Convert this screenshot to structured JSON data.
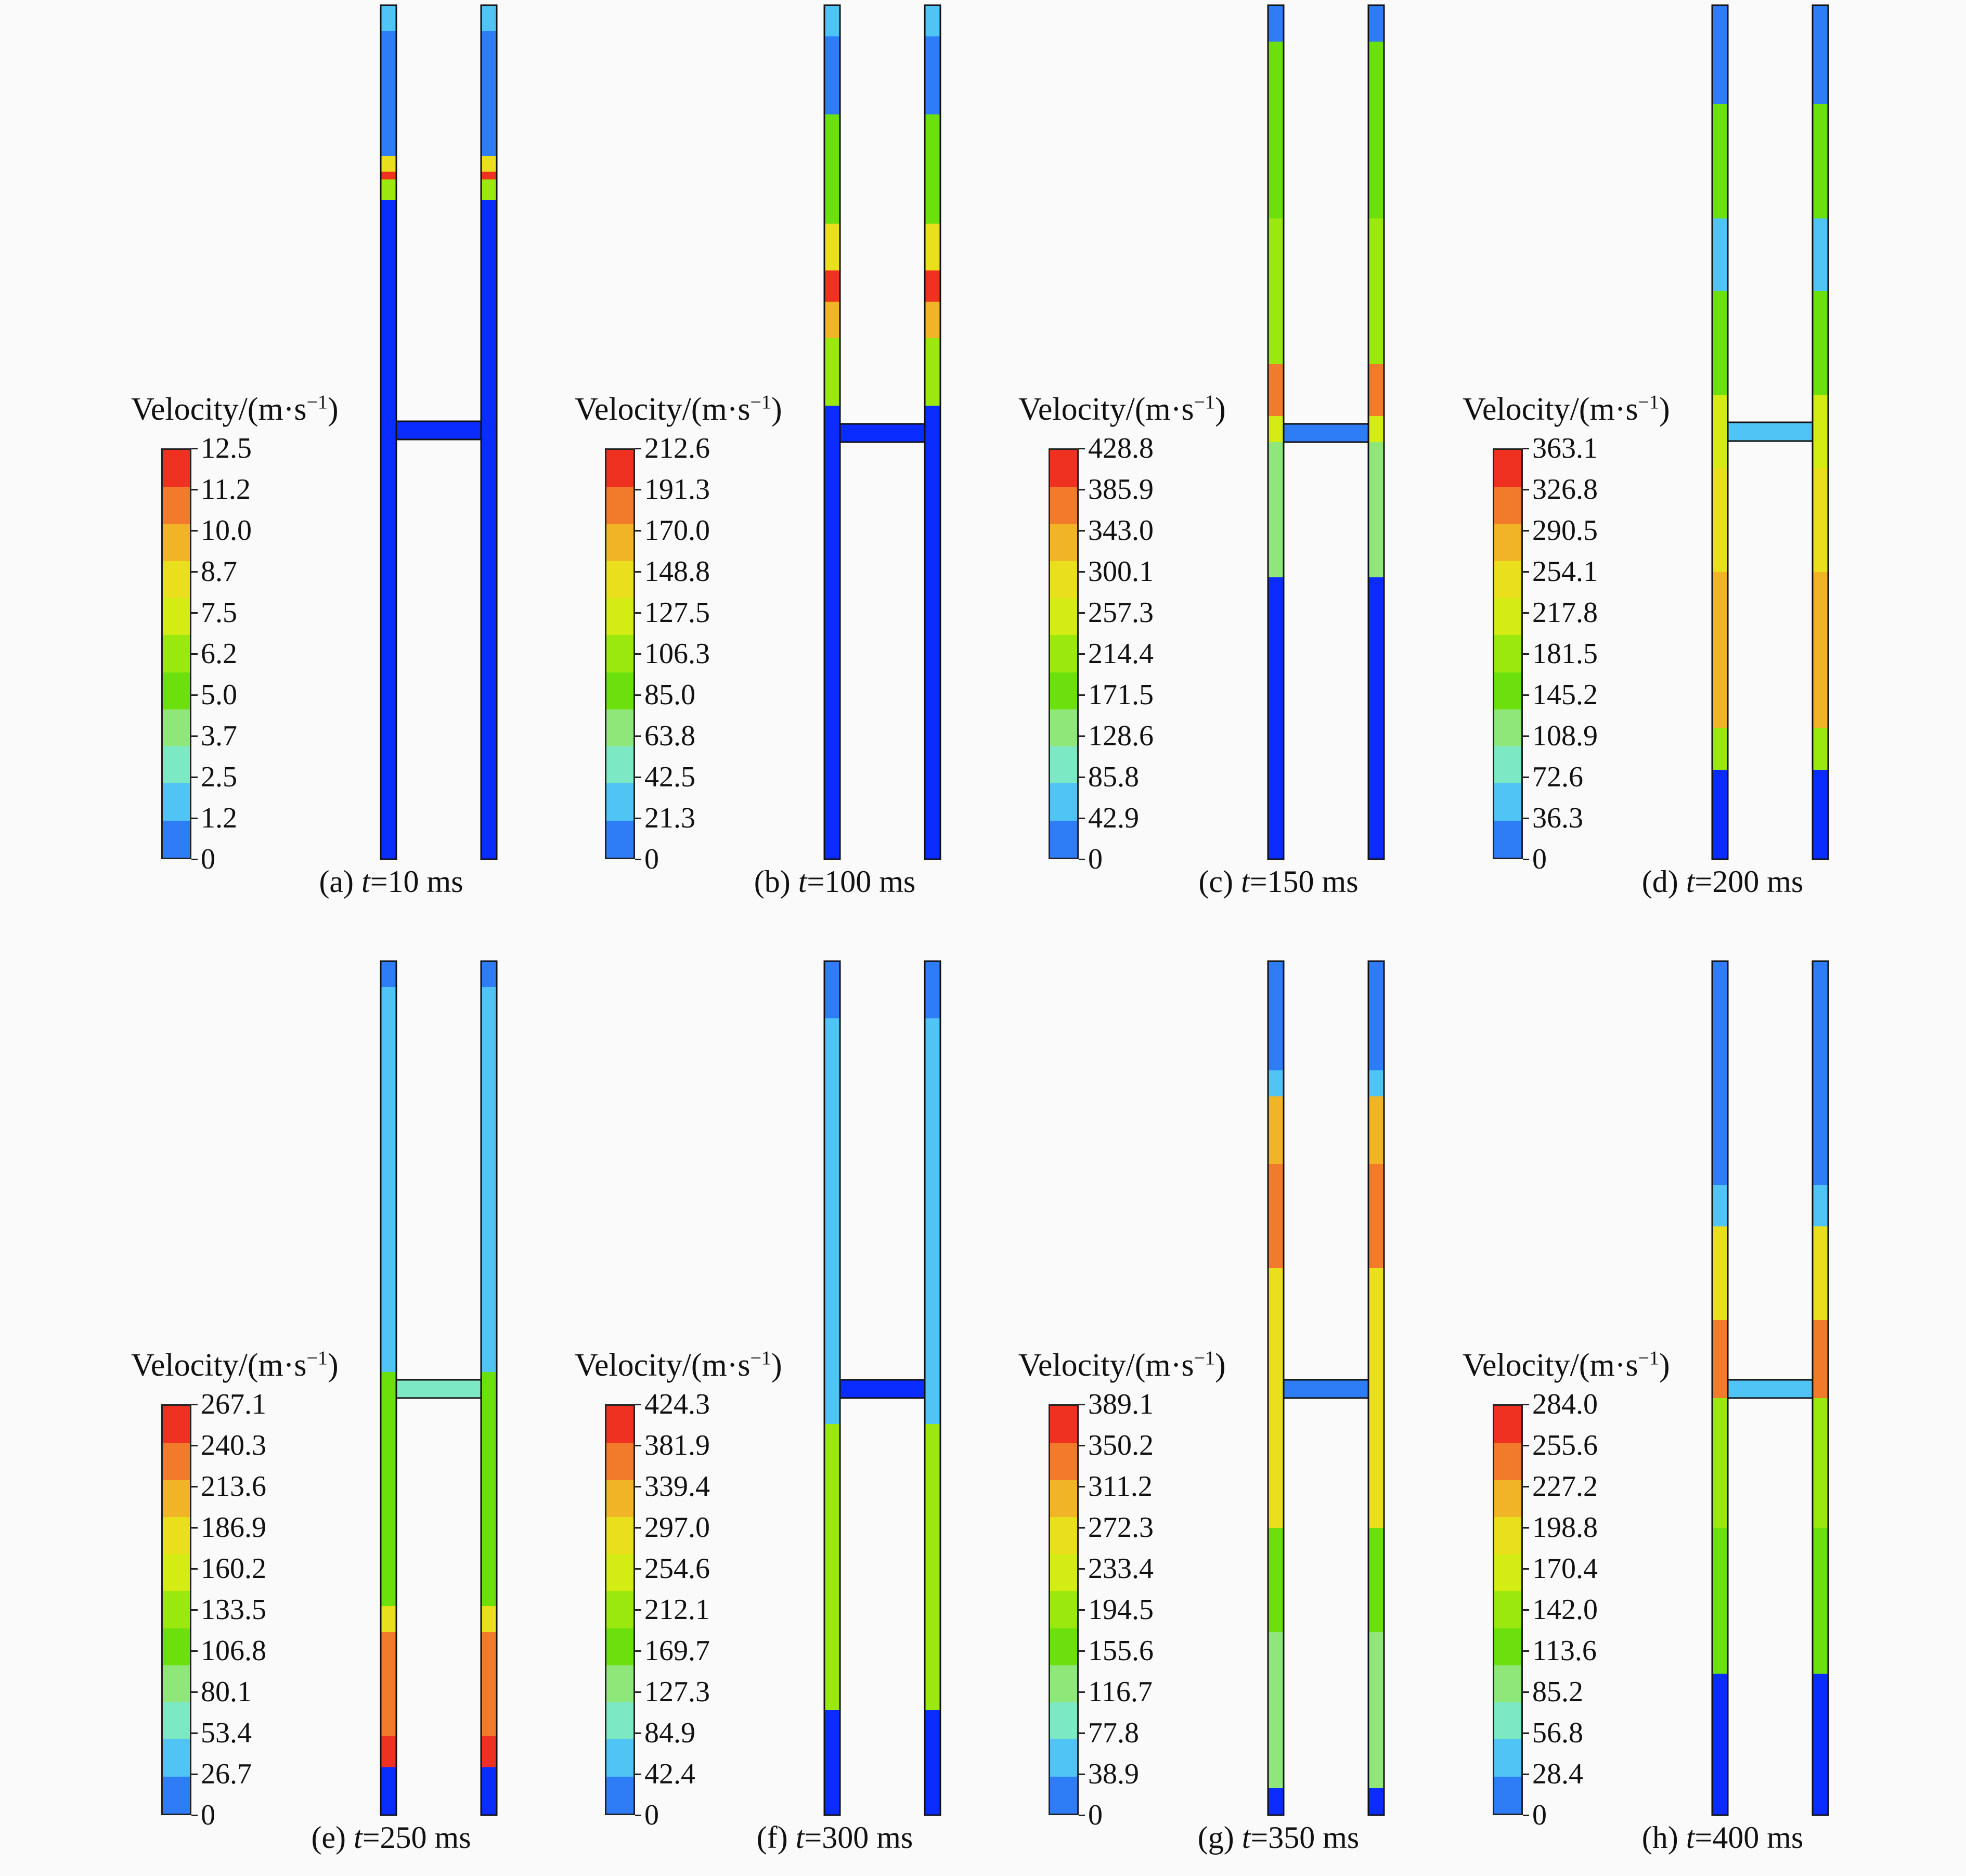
{
  "colorbar_title": "Velocity/(m·s",
  "colorbar_title_sup": "−1",
  "colorbar_title_close": ")",
  "colormap": [
    "#0a2cff",
    "#2f7cf7",
    "#4fc4f5",
    "#7de9c4",
    "#8fe679",
    "#6be00c",
    "#9be80f",
    "#d4ec13",
    "#eadf1c",
    "#f0b426",
    "#f27b2b",
    "#ef3121"
  ],
  "panels": [
    {
      "label": "(a) ",
      "t_var": "t",
      "t_value": "=10 ms",
      "ticks": [
        "12.5",
        "11.2",
        "10.0",
        "8.7",
        "7.5",
        "6.2",
        "5.0",
        "3.7",
        "2.5",
        "1.2",
        "0"
      ]
    },
    {
      "label": "(b) ",
      "t_var": "t",
      "t_value": "=100 ms",
      "ticks": [
        "212.6",
        "191.3",
        "170.0",
        "148.8",
        "127.5",
        "106.3",
        "85.0",
        "63.8",
        "42.5",
        "21.3",
        "0"
      ]
    },
    {
      "label": "(c) ",
      "t_var": "t",
      "t_value": "=150 ms",
      "ticks": [
        "428.8",
        "385.9",
        "343.0",
        "300.1",
        "257.3",
        "214.4",
        "171.5",
        "128.6",
        "85.8",
        "42.9",
        "0"
      ]
    },
    {
      "label": "(d) ",
      "t_var": "t",
      "t_value": "=200 ms",
      "ticks": [
        "363.1",
        "326.8",
        "290.5",
        "254.1",
        "217.8",
        "181.5",
        "145.2",
        "108.9",
        "72.6",
        "36.3",
        "0"
      ]
    },
    {
      "label": "(e) ",
      "t_var": "t",
      "t_value": "=250 ms",
      "ticks": [
        "267.1",
        "240.3",
        "213.6",
        "186.9",
        "160.2",
        "133.5",
        "106.8",
        "80.1",
        "53.4",
        "26.7",
        "0"
      ]
    },
    {
      "label": "(f) ",
      "t_var": "t",
      "t_value": "=300 ms",
      "ticks": [
        "424.3",
        "381.9",
        "339.4",
        "297.0",
        "254.6",
        "212.1",
        "169.7",
        "127.3",
        "84.9",
        "42.4",
        "0"
      ]
    },
    {
      "label": "(g) ",
      "t_var": "t",
      "t_value": "=350 ms",
      "ticks": [
        "389.1",
        "350.2",
        "311.2",
        "272.3",
        "233.4",
        "194.5",
        "155.6",
        "116.7",
        "77.8",
        "38.9",
        "0"
      ]
    },
    {
      "label": "(h) ",
      "t_var": "t",
      "t_value": "=400 ms",
      "ticks": [
        "284.0",
        "255.6",
        "227.2",
        "198.8",
        "170.4",
        "142.0",
        "113.6",
        "85.2",
        "56.8",
        "28.4",
        "0"
      ]
    }
  ]
}
